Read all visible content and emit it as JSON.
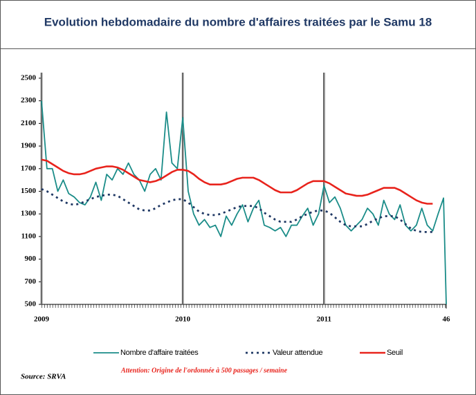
{
  "chart_data": {
    "type": "line",
    "title": "Evolution hebdomadaire du nombre d'affaires traitées par le Samu 18",
    "x": [
      1,
      3,
      5,
      7,
      9,
      11,
      13,
      15,
      17,
      19,
      21,
      23,
      25,
      27,
      29,
      31,
      33,
      35,
      37,
      39,
      41,
      43,
      45,
      47,
      49,
      51,
      53,
      55,
      57,
      59,
      61,
      63,
      65,
      67,
      69,
      71,
      73,
      75,
      77,
      79,
      81,
      83,
      85,
      87,
      89,
      91,
      93,
      95,
      97,
      99,
      101,
      103,
      105,
      107,
      109,
      111,
      113,
      115,
      117,
      119,
      121,
      123,
      125,
      127,
      129,
      131,
      133,
      135,
      137,
      139,
      141,
      143,
      145,
      147,
      149,
      150
    ],
    "xlim": [
      1,
      150
    ],
    "xticks": [
      {
        "value": 1,
        "label": "2009"
      },
      {
        "value": 53,
        "label": "2010"
      },
      {
        "value": 105,
        "label": "2011"
      },
      {
        "value": 150,
        "label": "46"
      }
    ],
    "ylim": [
      500,
      2500
    ],
    "yticks": [
      500,
      700,
      900,
      1100,
      1300,
      1500,
      1700,
      1900,
      2100,
      2300,
      2500
    ],
    "series": [
      {
        "name": "Nombre d'affaire traitées",
        "color": "#1a8c88",
        "style": "solid",
        "values": [
          2300,
          1700,
          1700,
          1500,
          1600,
          1480,
          1450,
          1400,
          1380,
          1450,
          1580,
          1420,
          1650,
          1600,
          1700,
          1650,
          1750,
          1650,
          1600,
          1500,
          1650,
          1700,
          1600,
          2200,
          1750,
          1700,
          2150,
          1500,
          1300,
          1200,
          1250,
          1180,
          1200,
          1100,
          1280,
          1200,
          1300,
          1380,
          1230,
          1350,
          1420,
          1200,
          1180,
          1150,
          1180,
          1100,
          1200,
          1200,
          1280,
          1350,
          1200,
          1300,
          1550,
          1400,
          1450,
          1350,
          1200,
          1150,
          1200,
          1250,
          1350,
          1300,
          1200,
          1420,
          1300,
          1250,
          1380,
          1200,
          1150,
          1200,
          1350,
          1200,
          1150,
          1300,
          1440,
          500
        ]
      },
      {
        "name": "Valeur attendue",
        "color": "#1f3864",
        "style": "dotted",
        "values": [
          1520,
          1500,
          1470,
          1440,
          1410,
          1390,
          1380,
          1390,
          1410,
          1430,
          1450,
          1460,
          1470,
          1470,
          1460,
          1430,
          1400,
          1370,
          1340,
          1330,
          1330,
          1350,
          1380,
          1400,
          1420,
          1430,
          1430,
          1400,
          1360,
          1320,
          1300,
          1290,
          1290,
          1300,
          1320,
          1340,
          1360,
          1370,
          1370,
          1370,
          1350,
          1310,
          1280,
          1250,
          1230,
          1230,
          1230,
          1250,
          1280,
          1300,
          1320,
          1330,
          1330,
          1310,
          1270,
          1230,
          1200,
          1190,
          1190,
          1190,
          1210,
          1240,
          1260,
          1280,
          1280,
          1280,
          1250,
          1210,
          1170,
          1150,
          1140,
          1140,
          1140,
          null,
          null,
          null
        ]
      },
      {
        "name": "Seuil",
        "color": "#e8231c",
        "style": "thick",
        "values": [
          1780,
          1770,
          1740,
          1710,
          1680,
          1660,
          1650,
          1650,
          1660,
          1680,
          1700,
          1710,
          1720,
          1720,
          1710,
          1690,
          1660,
          1630,
          1600,
          1590,
          1580,
          1590,
          1610,
          1640,
          1670,
          1690,
          1690,
          1680,
          1650,
          1610,
          1580,
          1560,
          1560,
          1560,
          1570,
          1590,
          1610,
          1620,
          1620,
          1620,
          1600,
          1570,
          1540,
          1510,
          1490,
          1490,
          1490,
          1510,
          1540,
          1570,
          1590,
          1590,
          1590,
          1570,
          1540,
          1510,
          1480,
          1470,
          1460,
          1460,
          1470,
          1490,
          1510,
          1530,
          1530,
          1530,
          1510,
          1480,
          1450,
          1420,
          1400,
          1390,
          1390,
          null,
          null,
          null
        ]
      }
    ],
    "source": "Source: SRVA",
    "annotation": "Attention: Origine de l'ordonnée à 500 passages / semaine",
    "grid": false
  }
}
